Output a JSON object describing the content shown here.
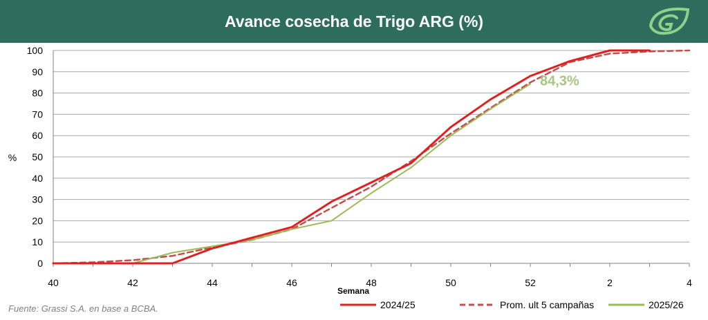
{
  "header": {
    "title": "Avance cosecha de Trigo ARG (%)",
    "bg_color": "#2e6d5e",
    "logo_icon": "leaf-g-logo-icon"
  },
  "source_note": "Fuente: Grassi S.A. en base a BCBA.",
  "chart_data": {
    "type": "line",
    "title": "Avance cosecha de Trigo ARG (%)",
    "xlabel": "Semana",
    "ylabel": "%",
    "ylim": [
      0,
      100
    ],
    "yticks": [
      "0",
      "10",
      "20",
      "30",
      "40",
      "50",
      "60",
      "70",
      "80",
      "90",
      "100"
    ],
    "x": [
      "40",
      "41",
      "42",
      "43",
      "44",
      "45",
      "46",
      "47",
      "48",
      "49",
      "50",
      "51",
      "52",
      "1",
      "2",
      "3",
      "4"
    ],
    "xtick_labels": [
      "40",
      "42",
      "44",
      "46",
      "48",
      "50",
      "52",
      "2",
      "4"
    ],
    "grid": "horizontal",
    "legend_position": "bottom-right",
    "annotation": {
      "text": "84,3%",
      "color": "#a9c47f"
    },
    "series": [
      {
        "name": "2024/25",
        "color": "#e02020",
        "style": "solid",
        "values": [
          0,
          0,
          0,
          0,
          7,
          12,
          17,
          29,
          38,
          47,
          64,
          77,
          88,
          95,
          100,
          100,
          null
        ]
      },
      {
        "name": "Prom. ult 5 campañas",
        "color": "#c0504d",
        "style": "dashed",
        "values": [
          0,
          0.5,
          1.5,
          3.5,
          7.5,
          11,
          16,
          26,
          36,
          48,
          61,
          73,
          85,
          94.5,
          98.5,
          99.5,
          100
        ]
      },
      {
        "name": "2025/26",
        "color": "#9bbb59",
        "style": "solid",
        "values": [
          0,
          0,
          0,
          5,
          8,
          11,
          16,
          20,
          33,
          45,
          60,
          72.5,
          84.3,
          null,
          null,
          null,
          null
        ]
      }
    ]
  }
}
